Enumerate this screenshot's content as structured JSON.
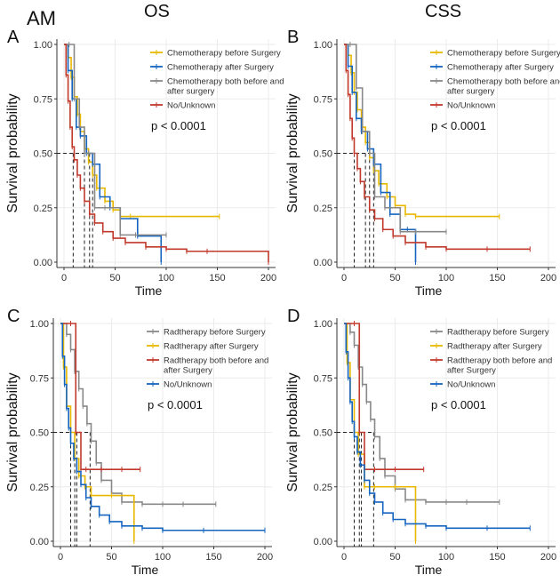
{
  "header": {
    "am_label": "AM",
    "os_label": "OS",
    "css_label": "CSS"
  },
  "colors": {
    "yellow": "#E8B800",
    "blue": "#1565C0",
    "gray": "#888888",
    "red": "#C0392B",
    "axis": "#333333",
    "grid": "#EBEBEB"
  },
  "chart_data": [
    {
      "id": "A",
      "panel_letter": "A",
      "type": "line",
      "title": "OS",
      "xlabel": "Time",
      "ylabel": "Survival probability",
      "xlim": [
        0,
        200
      ],
      "ylim": [
        0,
        1
      ],
      "xticks": [
        "0",
        "50",
        "100",
        "150",
        "200"
      ],
      "yticks": [
        "0.00",
        "0.25",
        "0.50",
        "0.75",
        "1.00"
      ],
      "grid": true,
      "legend_position": "top-right",
      "pvalue": "p < 0.0001",
      "median_times": [
        9,
        20,
        25,
        28
      ],
      "series": [
        {
          "name": "Chemotherapy before Surgery",
          "color": "yellow",
          "x": [
            0,
            4,
            7,
            10,
            13,
            16,
            20,
            24,
            28,
            32,
            40,
            48,
            55,
            65,
            152
          ],
          "y": [
            1.0,
            0.94,
            0.85,
            0.76,
            0.68,
            0.6,
            0.52,
            0.46,
            0.4,
            0.34,
            0.28,
            0.24,
            0.21,
            0.21,
            0.21
          ]
        },
        {
          "name": "Chemotherapy after Surgery",
          "color": "blue",
          "x": [
            0,
            4,
            8,
            12,
            16,
            22,
            28,
            35,
            45,
            55,
            72,
            95
          ],
          "y": [
            1.0,
            0.88,
            0.75,
            0.62,
            0.58,
            0.5,
            0.45,
            0.3,
            0.25,
            0.2,
            0.12,
            0.0
          ]
        },
        {
          "name": "Chemotherapy both before and after surgery",
          "color": "gray",
          "x": [
            0,
            5,
            10,
            15,
            20,
            24,
            30,
            40,
            55,
            70,
            100
          ],
          "y": [
            1.0,
            1.0,
            0.75,
            0.62,
            0.5,
            0.5,
            0.25,
            0.25,
            0.125,
            0.125,
            0.125
          ]
        },
        {
          "name": "No/Unknown",
          "color": "red",
          "x": [
            0,
            2,
            4,
            6,
            8,
            10,
            13,
            16,
            20,
            25,
            30,
            38,
            48,
            60,
            80,
            100,
            120,
            140,
            200
          ],
          "y": [
            1.0,
            0.86,
            0.74,
            0.62,
            0.53,
            0.47,
            0.4,
            0.34,
            0.28,
            0.22,
            0.18,
            0.14,
            0.11,
            0.09,
            0.07,
            0.06,
            0.05,
            0.05,
            0.0
          ]
        }
      ]
    },
    {
      "id": "B",
      "panel_letter": "B",
      "type": "line",
      "title": "CSS",
      "xlabel": "Time",
      "ylabel": "Survival probability",
      "xlim": [
        0,
        200
      ],
      "ylim": [
        0,
        1
      ],
      "xticks": [
        "0",
        "50",
        "100",
        "150",
        "200"
      ],
      "yticks": [
        "0.00",
        "0.25",
        "0.50",
        "0.75",
        "1.00"
      ],
      "grid": true,
      "legend_position": "top-right",
      "pvalue": "p < 0.0001",
      "median_times": [
        10,
        21,
        25,
        29
      ],
      "series": [
        {
          "name": "Chemotherapy before Surgery",
          "color": "yellow",
          "x": [
            0,
            4,
            7,
            10,
            13,
            17,
            21,
            25,
            29,
            34,
            42,
            50,
            60,
            70,
            152
          ],
          "y": [
            1.0,
            0.95,
            0.87,
            0.78,
            0.7,
            0.62,
            0.55,
            0.48,
            0.42,
            0.36,
            0.3,
            0.26,
            0.22,
            0.21,
            0.21
          ]
        },
        {
          "name": "Chemotherapy after Surgery",
          "color": "blue",
          "x": [
            0,
            4,
            8,
            12,
            17,
            23,
            29,
            36,
            45,
            55,
            62,
            70
          ],
          "y": [
            1.0,
            0.9,
            0.78,
            0.66,
            0.6,
            0.52,
            0.45,
            0.32,
            0.22,
            0.15,
            0.15,
            0.0
          ]
        },
        {
          "name": "Chemotherapy both before and after surgery",
          "color": "gray",
          "x": [
            0,
            6,
            12,
            18,
            25,
            30,
            40,
            55,
            70,
            100
          ],
          "y": [
            1.0,
            1.0,
            0.8,
            0.6,
            0.5,
            0.3,
            0.25,
            0.14,
            0.14,
            0.14
          ]
        },
        {
          "name": "No/Unknown",
          "color": "red",
          "x": [
            0,
            2,
            4,
            6,
            8,
            10,
            13,
            16,
            20,
            25,
            30,
            38,
            48,
            60,
            80,
            100,
            140,
            182
          ],
          "y": [
            1.0,
            0.88,
            0.77,
            0.66,
            0.57,
            0.5,
            0.43,
            0.37,
            0.3,
            0.24,
            0.2,
            0.15,
            0.12,
            0.09,
            0.07,
            0.06,
            0.06,
            0.06
          ]
        }
      ]
    },
    {
      "id": "C",
      "panel_letter": "C",
      "type": "line",
      "title": "",
      "xlabel": "Time",
      "ylabel": "Survival probability",
      "xlim": [
        0,
        200
      ],
      "ylim": [
        0,
        1
      ],
      "xticks": [
        "0",
        "50",
        "100",
        "150",
        "200"
      ],
      "yticks": [
        "0.00",
        "0.25",
        "0.50",
        "0.75",
        "1.00"
      ],
      "grid": true,
      "legend_position": "top-right",
      "pvalue": "p < 0.0001",
      "median_times": [
        10,
        14,
        16,
        29
      ],
      "series": [
        {
          "name": "Radtherapy before Surgery",
          "color": "gray",
          "x": [
            0,
            6,
            10,
            14,
            18,
            22,
            26,
            30,
            35,
            40,
            50,
            60,
            80,
            100,
            120,
            152
          ],
          "y": [
            1.0,
            0.95,
            0.88,
            0.78,
            0.7,
            0.62,
            0.54,
            0.46,
            0.36,
            0.28,
            0.22,
            0.18,
            0.17,
            0.17,
            0.17,
            0.17
          ]
        },
        {
          "name": "Radtherapy after Surgery",
          "color": "yellow",
          "x": [
            0,
            3,
            6,
            10,
            14,
            18,
            24,
            30,
            50,
            72
          ],
          "y": [
            1.0,
            0.8,
            0.62,
            0.5,
            0.38,
            0.3,
            0.25,
            0.21,
            0.21,
            0.0
          ]
        },
        {
          "name": "Radtherapy both before and after Surgery",
          "color": "red",
          "x": [
            0,
            10,
            15,
            20,
            25,
            40,
            60,
            78
          ],
          "y": [
            1.0,
            1.0,
            0.5,
            0.33,
            0.33,
            0.33,
            0.33,
            0.33
          ]
        },
        {
          "name": "No/Unknown",
          "color": "blue",
          "x": [
            0,
            2,
            4,
            6,
            8,
            10,
            13,
            16,
            20,
            25,
            30,
            38,
            48,
            60,
            80,
            100,
            140,
            200
          ],
          "y": [
            1.0,
            0.85,
            0.72,
            0.61,
            0.52,
            0.45,
            0.38,
            0.32,
            0.26,
            0.2,
            0.16,
            0.12,
            0.09,
            0.07,
            0.06,
            0.05,
            0.05,
            0.05
          ]
        }
      ]
    },
    {
      "id": "D",
      "panel_letter": "D",
      "type": "line",
      "title": "",
      "xlabel": "Time",
      "ylabel": "Survival probability",
      "xlim": [
        0,
        200
      ],
      "ylim": [
        0,
        1
      ],
      "xticks": [
        "0",
        "50",
        "100",
        "150",
        "200"
      ],
      "yticks": [
        "0.00",
        "0.25",
        "0.50",
        "0.75",
        "1.00"
      ],
      "grid": true,
      "legend_position": "top-right",
      "pvalue": "p < 0.0001",
      "median_times": [
        10,
        15,
        17,
        29
      ],
      "series": [
        {
          "name": "Radtherapy before Surgery",
          "color": "gray",
          "x": [
            0,
            6,
            10,
            14,
            18,
            22,
            26,
            30,
            35,
            40,
            50,
            60,
            80,
            100,
            120,
            152
          ],
          "y": [
            1.0,
            0.96,
            0.9,
            0.8,
            0.72,
            0.64,
            0.56,
            0.48,
            0.38,
            0.3,
            0.24,
            0.19,
            0.18,
            0.18,
            0.18,
            0.18
          ]
        },
        {
          "name": "Radtherapy after Surgery",
          "color": "yellow",
          "x": [
            0,
            3,
            6,
            10,
            14,
            20,
            30,
            50,
            70
          ],
          "y": [
            1.0,
            0.82,
            0.65,
            0.5,
            0.4,
            0.25,
            0.25,
            0.25,
            0.0
          ]
        },
        {
          "name": "Radtherapy both before and after Surgery",
          "color": "red",
          "x": [
            0,
            10,
            15,
            20,
            30,
            50,
            78
          ],
          "y": [
            1.0,
            1.0,
            0.5,
            0.33,
            0.33,
            0.33,
            0.33
          ]
        },
        {
          "name": "No/Unknown",
          "color": "blue",
          "x": [
            0,
            2,
            4,
            6,
            8,
            10,
            13,
            16,
            20,
            25,
            30,
            38,
            48,
            60,
            80,
            100,
            140,
            182
          ],
          "y": [
            1.0,
            0.87,
            0.75,
            0.64,
            0.55,
            0.48,
            0.41,
            0.35,
            0.28,
            0.22,
            0.18,
            0.13,
            0.1,
            0.08,
            0.07,
            0.06,
            0.06,
            0.06
          ]
        }
      ]
    }
  ]
}
